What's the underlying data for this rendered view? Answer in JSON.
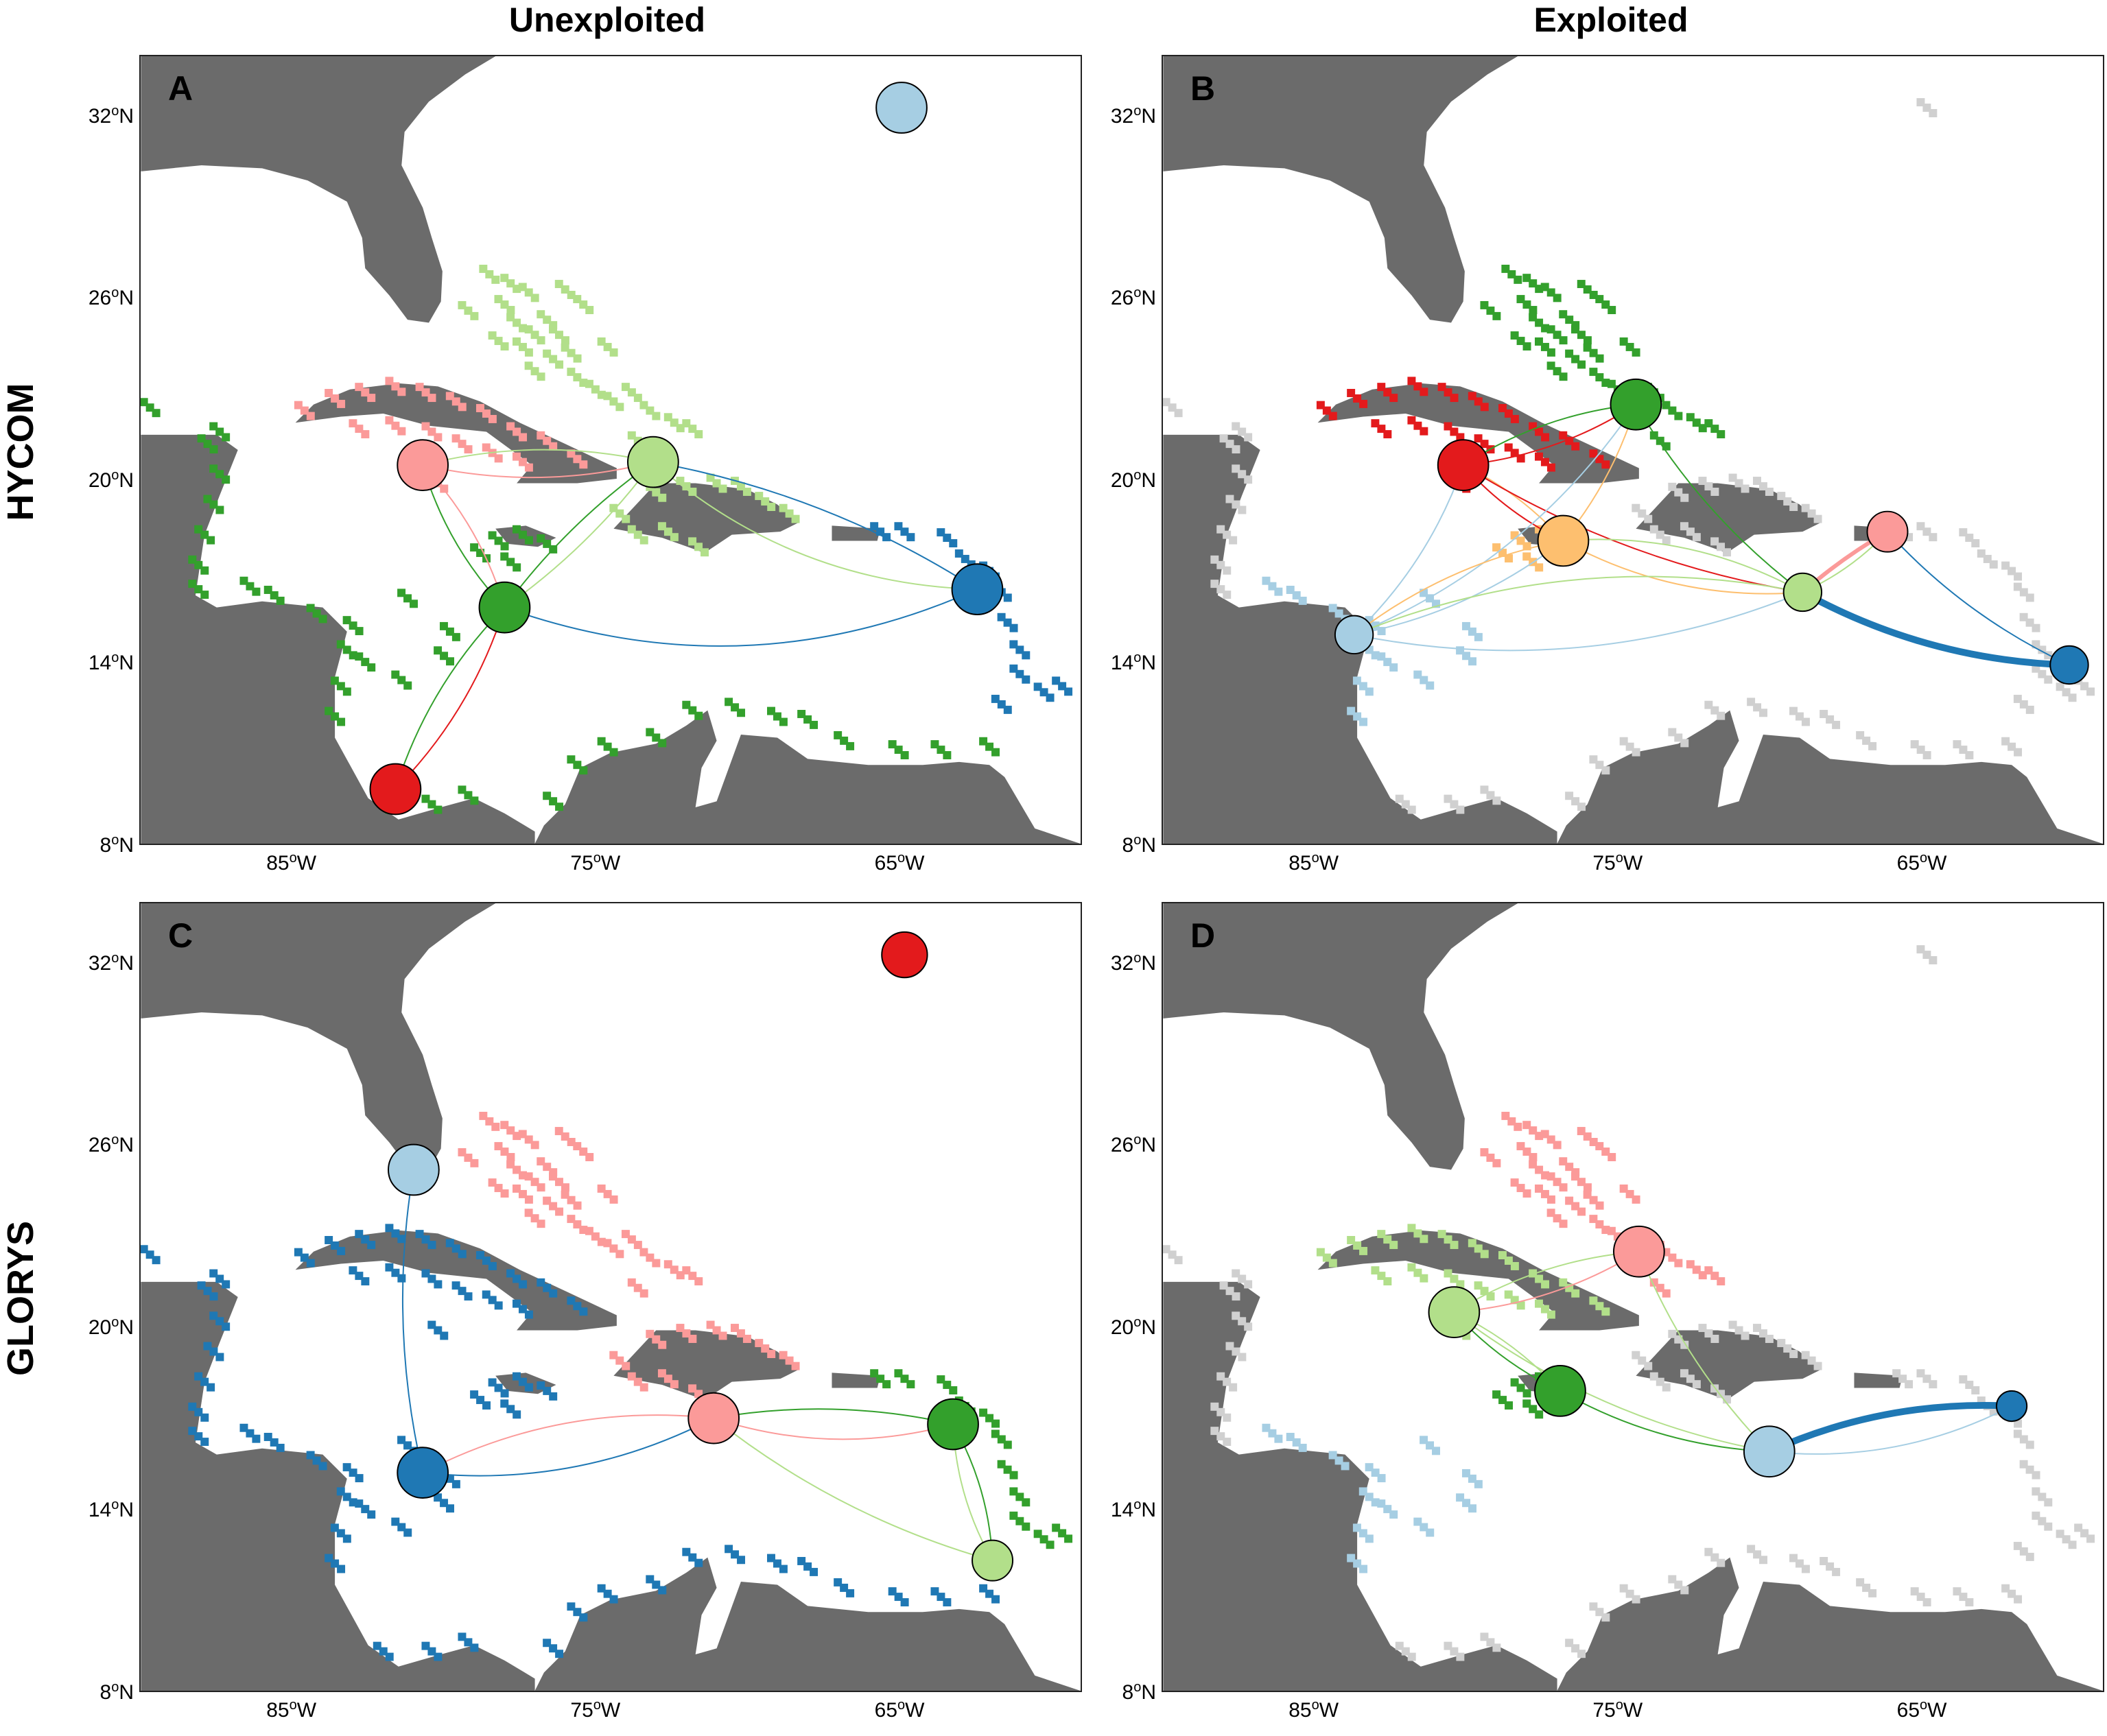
{
  "column_titles": {
    "left": "Unexploited",
    "right": "Exploited"
  },
  "row_titles": {
    "top": "HYCOM",
    "bottom": "GLORYS"
  },
  "axes": {
    "lat_ticks": [
      {
        "value": 8,
        "deg": "8",
        "hemi": "N"
      },
      {
        "value": 14,
        "deg": "14",
        "hemi": "N"
      },
      {
        "value": 20,
        "deg": "20",
        "hemi": "N"
      },
      {
        "value": 26,
        "deg": "26",
        "hemi": "N"
      },
      {
        "value": 32,
        "deg": "32",
        "hemi": "N"
      }
    ],
    "lon_ticks": [
      {
        "value": -85,
        "deg": "85",
        "hemi": "W"
      },
      {
        "value": -75,
        "deg": "75",
        "hemi": "W"
      },
      {
        "value": -65,
        "deg": "65",
        "hemi": "W"
      }
    ],
    "deg_symbol": "o",
    "lon_range": [
      -90,
      -59
    ],
    "lat_range": [
      8,
      34
    ]
  },
  "colors": {
    "land": "#6b6b6b",
    "ocean": "#ffffff",
    "red": "#e31a1c",
    "pink": "#fb9a99",
    "darkgreen": "#33a02c",
    "lightgreen": "#b2df8a",
    "darkblue": "#1f78b4",
    "lightblue": "#a6cee3",
    "orange": "#fdbf6f",
    "gray": "#d0d0d0"
  },
  "panels": [
    {
      "label": "A",
      "nodes": [
        {
          "lon": -64.9,
          "lat": 32.3,
          "size": 1.0,
          "color": "lightblue"
        },
        {
          "lon": -80.7,
          "lat": 20.5,
          "size": 1.0,
          "color": "pink"
        },
        {
          "lon": -73.1,
          "lat": 20.6,
          "size": 1.0,
          "color": "lightgreen"
        },
        {
          "lon": -62.4,
          "lat": 16.4,
          "size": 1.0,
          "color": "darkblue"
        },
        {
          "lon": -78.0,
          "lat": 15.8,
          "size": 1.0,
          "color": "darkgreen"
        },
        {
          "lon": -81.6,
          "lat": 9.8,
          "size": 1.0,
          "color": "red"
        }
      ],
      "edges": [
        {
          "from": 1,
          "to": 2,
          "color": "pink",
          "weight": 1,
          "bend": 0.12
        },
        {
          "from": 2,
          "to": 1,
          "color": "lightgreen",
          "weight": 1,
          "bend": 0.12
        },
        {
          "from": 1,
          "to": 4,
          "color": "darkgreen",
          "weight": 1,
          "bend": 0.12
        },
        {
          "from": 4,
          "to": 1,
          "color": "pink",
          "weight": 1,
          "bend": 0.12
        },
        {
          "from": 2,
          "to": 4,
          "color": "darkgreen",
          "weight": 1,
          "bend": 0.08
        },
        {
          "from": 4,
          "to": 2,
          "color": "lightgreen",
          "weight": 1,
          "bend": 0.08
        },
        {
          "from": 2,
          "to": 3,
          "color": "lightgreen",
          "weight": 1,
          "bend": 0.18
        },
        {
          "from": 3,
          "to": 2,
          "color": "darkblue",
          "weight": 1,
          "bend": 0.1
        },
        {
          "from": 4,
          "to": 3,
          "color": "darkblue",
          "weight": 1,
          "bend": 0.2
        },
        {
          "from": 4,
          "to": 5,
          "color": "darkgreen",
          "weight": 1,
          "bend": 0.12
        },
        {
          "from": 5,
          "to": 4,
          "color": "red",
          "weight": 1,
          "bend": 0.12
        }
      ]
    },
    {
      "label": "B",
      "nodes": [
        {
          "lon": -74.4,
          "lat": 22.5,
          "size": 1.0,
          "color": "darkgreen"
        },
        {
          "lon": -80.1,
          "lat": 20.5,
          "size": 1.0,
          "color": "red"
        },
        {
          "lon": -76.8,
          "lat": 18.0,
          "size": 1.0,
          "color": "orange"
        },
        {
          "lon": -66.1,
          "lat": 18.3,
          "size": 0.8,
          "color": "pink"
        },
        {
          "lon": -68.9,
          "lat": 16.3,
          "size": 0.75,
          "color": "lightgreen"
        },
        {
          "lon": -83.7,
          "lat": 14.9,
          "size": 0.75,
          "color": "lightblue"
        },
        {
          "lon": -60.1,
          "lat": 13.9,
          "size": 0.75,
          "color": "darkblue"
        }
      ],
      "edges": [
        {
          "from": 1,
          "to": 0,
          "color": "red",
          "weight": 1,
          "bend": 0.12
        },
        {
          "from": 0,
          "to": 1,
          "color": "darkgreen",
          "weight": 1,
          "bend": 0.12
        },
        {
          "from": 1,
          "to": 2,
          "color": "red",
          "weight": 1,
          "bend": 0.1
        },
        {
          "from": 2,
          "to": 1,
          "color": "orange",
          "weight": 1,
          "bend": 0.1
        },
        {
          "from": 2,
          "to": 0,
          "color": "orange",
          "weight": 1,
          "bend": 0.1
        },
        {
          "from": 0,
          "to": 4,
          "color": "darkgreen",
          "weight": 1,
          "bend": 0.1
        },
        {
          "from": 1,
          "to": 4,
          "color": "red",
          "weight": 1,
          "bend": 0.1
        },
        {
          "from": 2,
          "to": 4,
          "color": "orange",
          "weight": 1,
          "bend": 0.15
        },
        {
          "from": 4,
          "to": 2,
          "color": "lightgreen",
          "weight": 1,
          "bend": 0.15
        },
        {
          "from": 5,
          "to": 1,
          "color": "lightblue",
          "weight": 1,
          "bend": 0.12
        },
        {
          "from": 5,
          "to": 0,
          "color": "lightblue",
          "weight": 1,
          "bend": 0.15
        },
        {
          "from": 5,
          "to": 2,
          "color": "lightblue",
          "weight": 1,
          "bend": 0.12
        },
        {
          "from": 2,
          "to": 5,
          "color": "orange",
          "weight": 1,
          "bend": 0.12
        },
        {
          "from": 5,
          "to": 4,
          "color": "lightblue",
          "weight": 1,
          "bend": 0.15
        },
        {
          "from": 4,
          "to": 5,
          "color": "lightgreen",
          "weight": 1,
          "bend": 0.15
        },
        {
          "from": 4,
          "to": 3,
          "color": "lightgreen",
          "weight": 1,
          "bend": 0.1
        },
        {
          "from": 3,
          "to": 4,
          "color": "pink",
          "weight": 3,
          "bend": 0.05
        },
        {
          "from": 3,
          "to": 6,
          "color": "darkblue",
          "weight": 1,
          "bend": 0.1
        },
        {
          "from": 4,
          "to": 6,
          "color": "darkblue",
          "weight": 5,
          "bend": 0.12
        }
      ]
    },
    {
      "label": "C",
      "nodes": [
        {
          "lon": -64.8,
          "lat": 32.3,
          "size": 0.9,
          "color": "red"
        },
        {
          "lon": -81.0,
          "lat": 25.2,
          "size": 1.0,
          "color": "lightblue"
        },
        {
          "lon": -71.1,
          "lat": 17.0,
          "size": 1.0,
          "color": "pink"
        },
        {
          "lon": -63.2,
          "lat": 16.8,
          "size": 1.0,
          "color": "darkgreen"
        },
        {
          "lon": -80.7,
          "lat": 15.2,
          "size": 1.0,
          "color": "darkblue"
        },
        {
          "lon": -61.9,
          "lat": 12.3,
          "size": 0.8,
          "color": "lightgreen"
        }
      ],
      "edges": [
        {
          "from": 1,
          "to": 4,
          "color": "darkblue",
          "weight": 1,
          "bend": 0.1
        },
        {
          "from": 4,
          "to": 2,
          "color": "darkblue",
          "weight": 1,
          "bend": 0.15
        },
        {
          "from": 2,
          "to": 4,
          "color": "pink",
          "weight": 1,
          "bend": 0.15
        },
        {
          "from": 2,
          "to": 3,
          "color": "pink",
          "weight": 1,
          "bend": 0.15
        },
        {
          "from": 3,
          "to": 2,
          "color": "darkgreen",
          "weight": 1,
          "bend": 0.1
        },
        {
          "from": 2,
          "to": 5,
          "color": "lightgreen",
          "weight": 1,
          "bend": 0.1
        },
        {
          "from": 3,
          "to": 5,
          "color": "lightgreen",
          "weight": 1,
          "bend": 0.12
        },
        {
          "from": 5,
          "to": 3,
          "color": "darkgreen",
          "weight": 1,
          "bend": 0.12
        }
      ]
    },
    {
      "label": "D",
      "nodes": [
        {
          "lon": -74.3,
          "lat": 22.5,
          "size": 1.0,
          "color": "pink"
        },
        {
          "lon": -80.4,
          "lat": 20.5,
          "size": 1.0,
          "color": "lightgreen"
        },
        {
          "lon": -76.9,
          "lat": 17.9,
          "size": 1.0,
          "color": "darkgreen"
        },
        {
          "lon": -62.0,
          "lat": 17.4,
          "size": 0.6,
          "color": "darkblue"
        },
        {
          "lon": -70.0,
          "lat": 15.9,
          "size": 1.0,
          "color": "lightblue"
        }
      ],
      "edges": [
        {
          "from": 1,
          "to": 0,
          "color": "pink",
          "weight": 1,
          "bend": 0.12
        },
        {
          "from": 0,
          "to": 1,
          "color": "lightgreen",
          "weight": 1,
          "bend": 0.12
        },
        {
          "from": 1,
          "to": 2,
          "color": "darkgreen",
          "weight": 1,
          "bend": 0.1
        },
        {
          "from": 2,
          "to": 1,
          "color": "lightgreen",
          "weight": 1,
          "bend": 0.1
        },
        {
          "from": 0,
          "to": 4,
          "color": "lightgreen",
          "weight": 1,
          "bend": 0.1
        },
        {
          "from": 1,
          "to": 4,
          "color": "lightgreen",
          "weight": 1,
          "bend": 0.12
        },
        {
          "from": 2,
          "to": 4,
          "color": "darkgreen",
          "weight": 1,
          "bend": 0.12
        },
        {
          "from": 4,
          "to": 3,
          "color": "lightblue",
          "weight": 1,
          "bend": 0.15
        },
        {
          "from": 3,
          "to": 4,
          "color": "darkblue",
          "weight": 5,
          "bend": 0.12
        }
      ]
    }
  ]
}
